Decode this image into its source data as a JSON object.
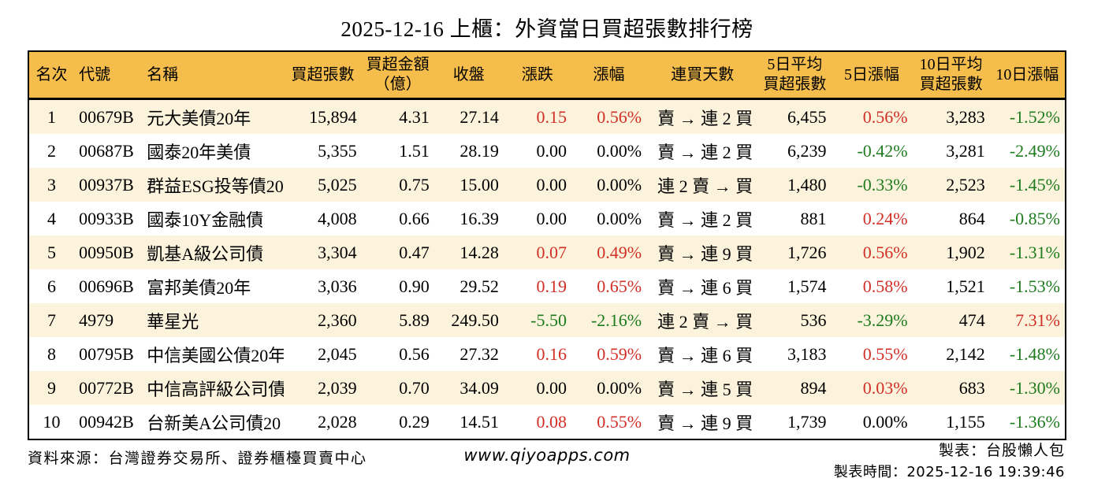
{
  "title": "2025-12-16 上櫃：外資當日買超張數排行榜",
  "colors": {
    "header_bg": "#f5bd4b",
    "stripe_bg": "#fcf3dc",
    "up_red": "#d22f27",
    "down_green": "#1e7b1e",
    "border": "#000000"
  },
  "table": {
    "headers": [
      "名次",
      "代號",
      "名稱",
      "買超張數",
      "買超金額\n（億）",
      "收盤",
      "漲跌",
      "漲幅",
      "連買天數",
      "5日平均\n買超張數",
      "5日漲幅",
      "10日平均\n買超張數",
      "10日漲幅"
    ],
    "rows": [
      {
        "rank": "1",
        "code": "00679B",
        "name": "元大美債20年",
        "volume": "15,894",
        "amount": "4.31",
        "close": "27.14",
        "change": "0.15",
        "change_pct": "0.56%",
        "streak": "賣 → 連 2 買",
        "avg5": "6,455",
        "pct5": "0.56%",
        "avg10": "3,283",
        "pct10": "-1.52%"
      },
      {
        "rank": "2",
        "code": "00687B",
        "name": "國泰20年美債",
        "volume": "5,355",
        "amount": "1.51",
        "close": "28.19",
        "change": "0.00",
        "change_pct": "0.00%",
        "streak": "賣 → 連 2 買",
        "avg5": "6,239",
        "pct5": "-0.42%",
        "avg10": "3,281",
        "pct10": "-2.49%"
      },
      {
        "rank": "3",
        "code": "00937B",
        "name": "群益ESG投等債20",
        "volume": "5,025",
        "amount": "0.75",
        "close": "15.00",
        "change": "0.00",
        "change_pct": "0.00%",
        "streak": "連 2 賣 → 買",
        "avg5": "1,480",
        "pct5": "-0.33%",
        "avg10": "2,523",
        "pct10": "-1.45%"
      },
      {
        "rank": "4",
        "code": "00933B",
        "name": "國泰10Y金融債",
        "volume": "4,008",
        "amount": "0.66",
        "close": "16.39",
        "change": "0.00",
        "change_pct": "0.00%",
        "streak": "賣 → 連 2 買",
        "avg5": "881",
        "pct5": "0.24%",
        "avg10": "864",
        "pct10": "-0.85%"
      },
      {
        "rank": "5",
        "code": "00950B",
        "name": "凱基A級公司債",
        "volume": "3,304",
        "amount": "0.47",
        "close": "14.28",
        "change": "0.07",
        "change_pct": "0.49%",
        "streak": "賣 → 連 9 買",
        "avg5": "1,726",
        "pct5": "0.56%",
        "avg10": "1,902",
        "pct10": "-1.31%"
      },
      {
        "rank": "6",
        "code": "00696B",
        "name": "富邦美債20年",
        "volume": "3,036",
        "amount": "0.90",
        "close": "29.52",
        "change": "0.19",
        "change_pct": "0.65%",
        "streak": "賣 → 連 6 買",
        "avg5": "1,574",
        "pct5": "0.58%",
        "avg10": "1,521",
        "pct10": "-1.53%"
      },
      {
        "rank": "7",
        "code": "4979",
        "name": "華星光",
        "volume": "2,360",
        "amount": "5.89",
        "close": "249.50",
        "change": "-5.50",
        "change_pct": "-2.16%",
        "streak": "連 2 賣 → 買",
        "avg5": "536",
        "pct5": "-3.29%",
        "avg10": "474",
        "pct10": "7.31%"
      },
      {
        "rank": "8",
        "code": "00795B",
        "name": "中信美國公債20年",
        "volume": "2,045",
        "amount": "0.56",
        "close": "27.32",
        "change": "0.16",
        "change_pct": "0.59%",
        "streak": "賣 → 連 6 買",
        "avg5": "3,183",
        "pct5": "0.55%",
        "avg10": "2,142",
        "pct10": "-1.48%"
      },
      {
        "rank": "9",
        "code": "00772B",
        "name": "中信高評級公司債",
        "volume": "2,039",
        "amount": "0.70",
        "close": "34.09",
        "change": "0.00",
        "change_pct": "0.00%",
        "streak": "賣 → 連 5 買",
        "avg5": "894",
        "pct5": "0.03%",
        "avg10": "683",
        "pct10": "-1.30%"
      },
      {
        "rank": "10",
        "code": "00942B",
        "name": "台新美A公司債20",
        "volume": "2,028",
        "amount": "0.29",
        "close": "14.51",
        "change": "0.08",
        "change_pct": "0.55%",
        "streak": "賣 → 連 9 買",
        "avg5": "1,739",
        "pct5": "0.00%",
        "avg10": "1,155",
        "pct10": "-1.36%"
      }
    ]
  },
  "footer": {
    "source": "資料來源：台灣證券交易所、證券櫃檯買賣中心",
    "website": "www.qiyoapps.com",
    "maker": "製表：台股懶人包",
    "made_time": "製表時間：2025-12-16 19:39:46"
  },
  "chart_data": {
    "type": "table",
    "title": "2025-12-16 上櫃：外資當日買超張數排行榜",
    "columns": [
      "名次",
      "代號",
      "名稱",
      "買超張數",
      "買超金額（億）",
      "收盤",
      "漲跌",
      "漲幅",
      "連買天數",
      "5日平均買超張數",
      "5日漲幅",
      "10日平均買超張數",
      "10日漲幅"
    ],
    "rows": [
      [
        "1",
        "00679B",
        "元大美債20年",
        "15,894",
        "4.31",
        "27.14",
        "0.15",
        "0.56%",
        "賣 → 連 2 買",
        "6,455",
        "0.56%",
        "3,283",
        "-1.52%"
      ],
      [
        "2",
        "00687B",
        "國泰20年美債",
        "5,355",
        "1.51",
        "28.19",
        "0.00",
        "0.00%",
        "賣 → 連 2 買",
        "6,239",
        "-0.42%",
        "3,281",
        "-2.49%"
      ],
      [
        "3",
        "00937B",
        "群益ESG投等債20",
        "5,025",
        "0.75",
        "15.00",
        "0.00",
        "0.00%",
        "連 2 賣 → 買",
        "1,480",
        "-0.33%",
        "2,523",
        "-1.45%"
      ],
      [
        "4",
        "00933B",
        "國泰10Y金融債",
        "4,008",
        "0.66",
        "16.39",
        "0.00",
        "0.00%",
        "賣 → 連 2 買",
        "881",
        "0.24%",
        "864",
        "-0.85%"
      ],
      [
        "5",
        "00950B",
        "凱基A級公司債",
        "3,304",
        "0.47",
        "14.28",
        "0.07",
        "0.49%",
        "賣 → 連 9 買",
        "1,726",
        "0.56%",
        "1,902",
        "-1.31%"
      ],
      [
        "6",
        "00696B",
        "富邦美債20年",
        "3,036",
        "0.90",
        "29.52",
        "0.19",
        "0.65%",
        "賣 → 連 6 買",
        "1,574",
        "0.58%",
        "1,521",
        "-1.53%"
      ],
      [
        "7",
        "4979",
        "華星光",
        "2,360",
        "5.89",
        "249.50",
        "-5.50",
        "-2.16%",
        "連 2 賣 → 買",
        "536",
        "-3.29%",
        "474",
        "7.31%"
      ],
      [
        "8",
        "00795B",
        "中信美國公債20年",
        "2,045",
        "0.56",
        "27.32",
        "0.16",
        "0.59%",
        "賣 → 連 6 買",
        "3,183",
        "0.55%",
        "2,142",
        "-1.48%"
      ],
      [
        "9",
        "00772B",
        "中信高評級公司債",
        "2,039",
        "0.70",
        "34.09",
        "0.00",
        "0.00%",
        "賣 → 連 5 買",
        "894",
        "0.03%",
        "683",
        "-1.30%"
      ],
      [
        "10",
        "00942B",
        "台新美A公司債20",
        "2,028",
        "0.29",
        "14.51",
        "0.08",
        "0.55%",
        "賣 → 連 9 買",
        "1,739",
        "0.00%",
        "1,155",
        "-1.36%"
      ]
    ],
    "notes": {
      "color_coding": "positive values red (up), negative values green (down), zero black",
      "legend_position": "none",
      "grid": "striped rows, amber header"
    }
  }
}
